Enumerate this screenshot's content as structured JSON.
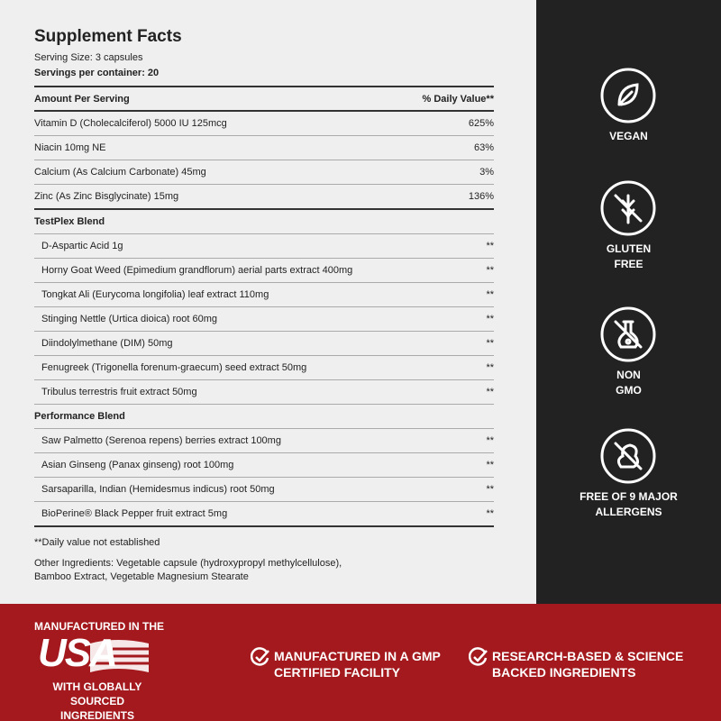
{
  "header": {
    "title": "Supplement Facts",
    "serving_size": "Serving Size: 3 capsules",
    "servings_per_container": "Servings per container: 20"
  },
  "table": {
    "columns": [
      "Amount Per Serving",
      "% Daily Value**"
    ],
    "rows": [
      [
        "Vitamin D (Cholecalciferol) 5000 IU 125mcg",
        "625%"
      ],
      [
        "Niacin 10mg NE",
        "63%"
      ],
      [
        "Calcium (As Calcium Carbonate) 45mg",
        "3%"
      ],
      [
        "Zinc (As Zinc Bisglycinate) 15mg",
        "136%"
      ]
    ],
    "sections": [
      {
        "name": "TestPlex Blend",
        "rows": [
          [
            "D-Aspartic Acid 1g",
            "**"
          ],
          [
            "Horny Goat Weed (Epimedium grandflorum) aerial parts extract 400mg",
            "**"
          ],
          [
            "Tongkat Ali (Eurycoma longifolia) leaf extract 110mg",
            "**"
          ],
          [
            "Stinging Nettle (Urtica dioica) root 60mg",
            "**"
          ],
          [
            "Diindolylmethane (DIM) 50mg",
            "**"
          ],
          [
            "Fenugreek (Trigonella forenum-graecum) seed extract 50mg",
            "**"
          ],
          [
            "Tribulus terrestris fruit extract 50mg",
            "**"
          ]
        ]
      },
      {
        "name": "Performance Blend",
        "rows": [
          [
            "Saw Palmetto (Serenoa repens) berries extract 100mg",
            "**"
          ],
          [
            "Asian Ginseng (Panax ginseng) root 100mg",
            "**"
          ],
          [
            "Sarsaparilla, Indian (Hemidesmus indicus) root 50mg",
            "**"
          ],
          [
            "BioPerine® Black Pepper fruit extract 5mg",
            "**"
          ]
        ]
      }
    ]
  },
  "footnote": "**Daily value not established",
  "other_ingredients": [
    "Other Ingredients: Vegetable capsule (hydroxypropyl methylcellulose),",
    "Bamboo Extract, Vegetable Magnesium Stearate"
  ],
  "badges": [
    [
      "VEGAN"
    ],
    [
      "GLUTEN",
      "FREE"
    ],
    [
      "NON",
      "GMO"
    ],
    [
      "FREE OF 9 MAJOR",
      "ALLERGENS"
    ]
  ],
  "banner": {
    "origin": {
      "top": "MANUFACTURED IN THE",
      "logo": "USA",
      "bottom": [
        "WITH GLOBALLY",
        "SOURCED INGREDIENTS"
      ]
    },
    "claims": [
      [
        "MANUFACTURED IN A GMP",
        "CERTIFIED FACILITY"
      ],
      [
        "RESEARCH-BASED & SCIENCE",
        "BACKED INGREDIENTS"
      ]
    ]
  }
}
